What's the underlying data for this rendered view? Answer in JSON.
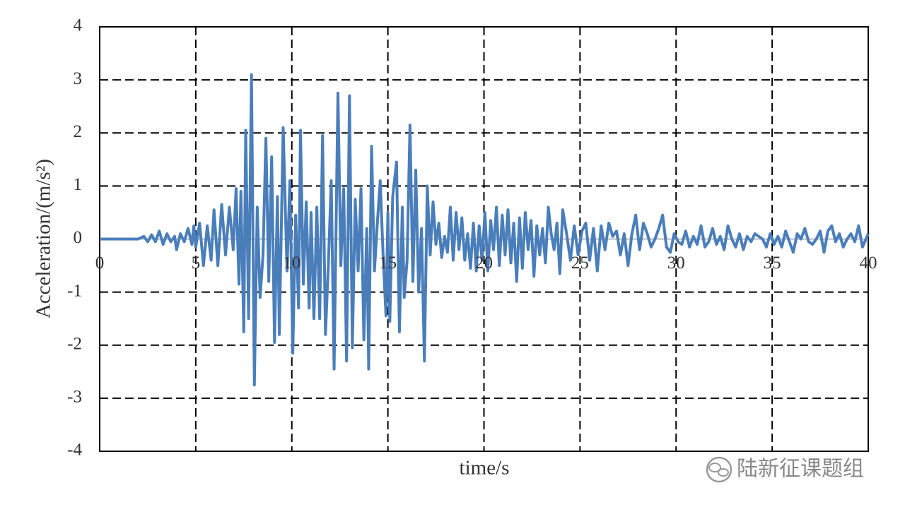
{
  "chart_data": {
    "type": "line",
    "xlabel": "time/s",
    "ylabel": "Acceleration/(m/s²)",
    "watermark": "陆新征课题组",
    "xlim": [
      0,
      40
    ],
    "xticks": [
      0,
      5,
      10,
      15,
      20,
      25,
      30,
      35,
      40
    ],
    "ylim": [
      -4,
      4
    ],
    "yticks": [
      -4,
      -3,
      -2,
      -1,
      0,
      1,
      2,
      3,
      4
    ],
    "grid": true,
    "x": [
      0,
      2,
      2.3,
      2.5,
      2.7,
      2.9,
      3.1,
      3.3,
      3.5,
      3.7,
      3.9,
      4.0,
      4.2,
      4.4,
      4.6,
      4.8,
      4.9,
      5.0,
      5.2,
      5.4,
      5.6,
      5.8,
      5.95,
      6.15,
      6.35,
      6.55,
      6.75,
      6.95,
      7.1,
      7.25,
      7.35,
      7.5,
      7.6,
      7.75,
      7.9,
      8.05,
      8.2,
      8.35,
      8.5,
      8.65,
      8.8,
      8.95,
      9.1,
      9.25,
      9.35,
      9.55,
      9.75,
      9.9,
      10.05,
      10.2,
      10.35,
      10.45,
      10.6,
      10.75,
      10.9,
      11.0,
      11.15,
      11.3,
      11.45,
      11.6,
      11.75,
      11.9,
      12.05,
      12.2,
      12.4,
      12.55,
      12.7,
      12.85,
      13.0,
      13.15,
      13.3,
      13.45,
      13.6,
      13.75,
      13.9,
      14.0,
      14.15,
      14.3,
      14.45,
      14.6,
      14.75,
      14.9,
      15.0,
      15.1,
      15.25,
      15.45,
      15.6,
      15.75,
      15.85,
      16.0,
      16.15,
      16.3,
      16.45,
      16.6,
      16.75,
      16.9,
      17.05,
      17.2,
      17.35,
      17.5,
      17.65,
      17.8,
      17.95,
      18.1,
      18.25,
      18.4,
      18.55,
      18.7,
      18.85,
      19.0,
      19.15,
      19.3,
      19.45,
      19.6,
      19.75,
      19.9,
      20.05,
      20.2,
      20.35,
      20.5,
      20.65,
      20.8,
      20.95,
      21.1,
      21.25,
      21.4,
      21.55,
      21.7,
      21.85,
      22.0,
      22.15,
      22.3,
      22.45,
      22.6,
      22.75,
      22.9,
      23.05,
      23.2,
      23.35,
      23.5,
      23.65,
      23.8,
      23.95,
      24.1,
      24.3,
      24.5,
      24.7,
      24.9,
      25.1,
      25.3,
      25.5,
      25.7,
      25.9,
      26.1,
      26.3,
      26.5,
      26.7,
      26.9,
      27.1,
      27.3,
      27.5,
      27.7,
      27.9,
      28.1,
      28.3,
      28.5,
      28.7,
      28.9,
      29.1,
      29.3,
      29.5,
      29.7,
      29.9,
      30.1,
      30.3,
      30.5,
      30.7,
      30.9,
      31.1,
      31.3,
      31.5,
      31.7,
      31.9,
      32.1,
      32.3,
      32.5,
      32.7,
      32.9,
      33.1,
      33.3,
      33.5,
      33.7,
      33.9,
      34.1,
      34.3,
      34.5,
      34.7,
      34.9,
      35.1,
      35.3,
      35.5,
      35.7,
      35.9,
      36.1,
      36.3,
      36.5,
      36.7,
      36.9,
      37.1,
      37.3,
      37.5,
      37.7,
      37.9,
      38.1,
      38.3,
      38.5,
      38.7,
      38.9,
      39.1,
      39.3,
      39.5,
      39.7,
      40
    ],
    "series": [
      {
        "color": "#4a7ebb",
        "values": [
          0,
          0,
          0.05,
          -0.05,
          0.08,
          -0.05,
          0.15,
          -0.1,
          0.1,
          -0.05,
          0.05,
          -0.2,
          0.1,
          -0.05,
          0.2,
          -0.1,
          0.25,
          -0.15,
          0.3,
          -0.5,
          0.25,
          -0.4,
          0.55,
          -0.5,
          0.65,
          -0.3,
          0.6,
          -0.2,
          0.95,
          -0.85,
          0.9,
          -1.75,
          2.05,
          -1.5,
          3.1,
          -2.75,
          0.6,
          -1.1,
          -0.3,
          1.9,
          -0.8,
          1.55,
          -1.95,
          0.8,
          -1.8,
          2.1,
          -0.6,
          1.1,
          -2.15,
          0.45,
          -1.3,
          2.05,
          -0.85,
          0.7,
          -1.3,
          0.5,
          -1.5,
          0.6,
          -1.5,
          1.95,
          -1.8,
          -0.5,
          1.1,
          -2.45,
          2.75,
          -0.5,
          0.95,
          -2.3,
          2.7,
          -2.05,
          0.75,
          -0.6,
          0.95,
          -1.9,
          0.2,
          -2.45,
          1.75,
          -0.6,
          0.3,
          1.1,
          -0.3,
          -1.45,
          0.5,
          -1.55,
          0.8,
          1.45,
          -1.75,
          0.6,
          -1.1,
          -0.4,
          2.15,
          -0.8,
          1.3,
          -1.0,
          0.2,
          -2.3,
          1.0,
          -0.3,
          0.7,
          -0.1,
          0.3,
          -0.35,
          0.05,
          -0.25,
          0.6,
          -0.4,
          0.5,
          -0.2,
          0.4,
          -0.4,
          0.1,
          -0.55,
          0.3,
          -0.6,
          0.25,
          -0.4,
          0.5,
          -0.6,
          0.35,
          -0.2,
          0.6,
          -0.5,
          0.45,
          -0.3,
          0.55,
          -0.45,
          0.3,
          -0.8,
          0.4,
          -0.55,
          0.5,
          -0.2,
          0.35,
          -0.7,
          0.25,
          -0.3,
          0.2,
          -0.45,
          0.6,
          0.1,
          -0.2,
          0.3,
          -0.65,
          0.55,
          0.1,
          -0.4,
          0.25,
          -0.3,
          0.15,
          0.3,
          -0.4,
          0.2,
          -0.6,
          0.25,
          -0.2,
          0.3,
          0.05,
          0.15,
          -0.3,
          0.1,
          -0.5,
          0.1,
          0.45,
          -0.2,
          0.3,
          0.1,
          -0.15,
          0.0,
          0.2,
          0.45,
          -0.15,
          -0.25,
          0.1,
          -0.05,
          -0.1,
          0.15,
          -0.15,
          0.05,
          -0.1,
          0.25,
          -0.15,
          -0.05,
          0.2,
          -0.1,
          0.05,
          -0.2,
          0.25,
          0.0,
          -0.15,
          0.1,
          -0.2,
          0.05,
          -0.05,
          0.1,
          0.05,
          0.0,
          -0.15,
          0.1,
          -0.1,
          0.05,
          -0.15,
          0.15,
          -0.05,
          -0.25,
          0.1,
          0.0,
          0.2,
          -0.05,
          -0.1,
          0.0,
          0.15,
          -0.25,
          0.15,
          0.25,
          -0.05,
          0.1,
          -0.15,
          0.0,
          0.1,
          -0.05,
          0.25,
          -0.15,
          0.1
        ]
      }
    ]
  }
}
